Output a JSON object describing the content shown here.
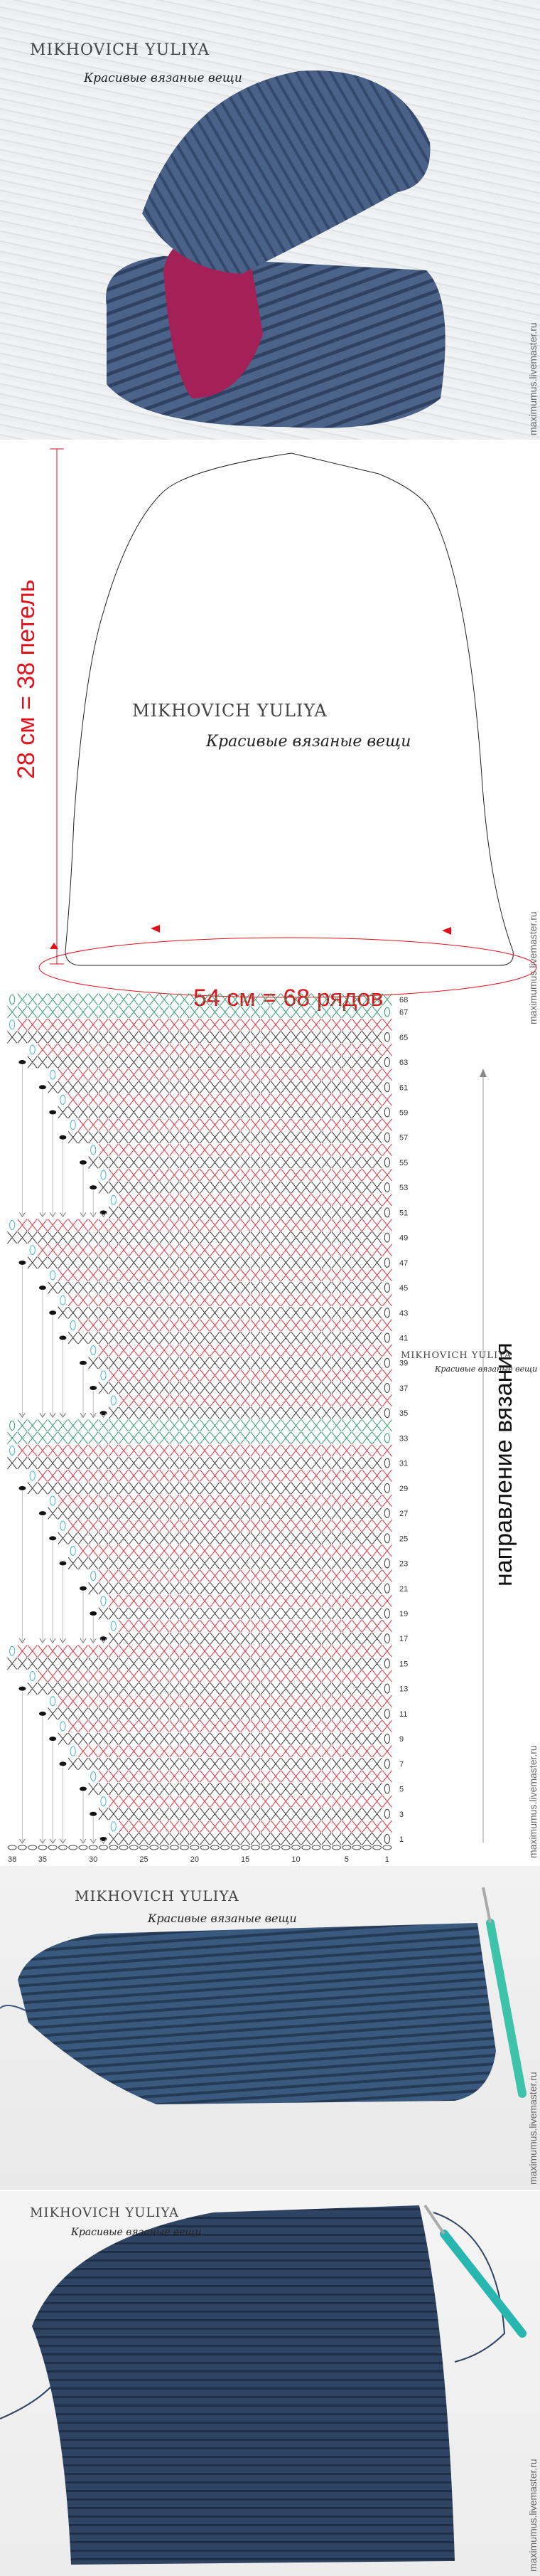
{
  "watermark": "maximumus.livemaster.ru",
  "logo": {
    "name": "MIKHOVICH YULIYA",
    "tagline": "Красивые вязаные вещи"
  },
  "schematic": {
    "height_label": "28 см = 38 петель",
    "width_label": "54 см = 68 рядов"
  },
  "pattern": {
    "direction_label": "направление вязания",
    "columns": 38,
    "rows": 68,
    "column_ticks": [
      "38",
      "35",
      "30",
      "25",
      "20",
      "15",
      "10",
      "5",
      "1"
    ],
    "row_labels": [
      "68",
      "67",
      "65",
      "63",
      "61",
      "59",
      "57",
      "55",
      "53",
      "51",
      "49",
      "47",
      "45",
      "43",
      "41",
      "39",
      "37",
      "35",
      "33",
      "31",
      "29",
      "27",
      "25",
      "23",
      "21",
      "19",
      "17",
      "15",
      "13",
      "11",
      "9",
      "7",
      "5",
      "3",
      "1"
    ],
    "sections": [
      [
        1,
        16
      ],
      [
        17,
        34
      ],
      [
        35,
        50
      ],
      [
        51,
        68
      ]
    ],
    "short_row_stitches": [
      28,
      29,
      30,
      32,
      33,
      34,
      36,
      38
    ],
    "green_rows": [
      33,
      34,
      67,
      68
    ],
    "colors": {
      "odd": "#3a3a3a",
      "even": "#e2323f",
      "green": "#2f9e6c",
      "ring": "#45b5d6",
      "dot": "#111111",
      "measure": "#e1111b"
    }
  }
}
